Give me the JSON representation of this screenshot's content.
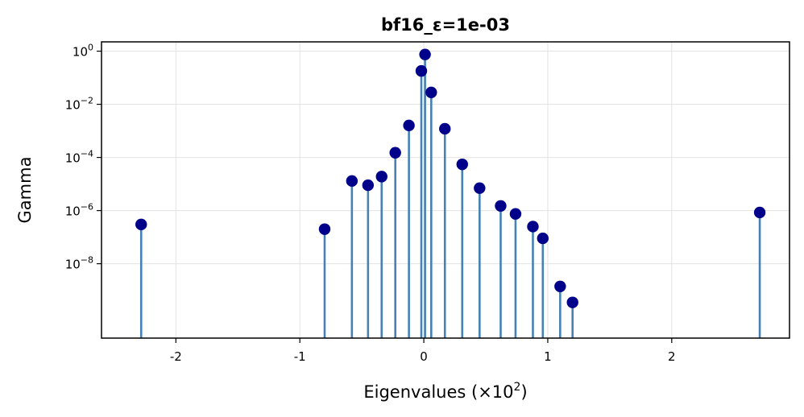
{
  "chart_data": {
    "type": "stem",
    "title": "bf16_ε=1e-03",
    "xlabel": {
      "text": "Eigenvalues (×10",
      "sup": "2",
      "suffix": ")"
    },
    "ylabel": "Gamma",
    "x_scale": "linear",
    "y_scale": "log",
    "xlim": [
      -2.6,
      2.95
    ],
    "ylim_exp": [
      -10.8,
      0.35
    ],
    "grid": true,
    "x_ticks": [
      {
        "value": -2,
        "label": "-2"
      },
      {
        "value": -1,
        "label": "-1"
      },
      {
        "value": 0,
        "label": "0"
      },
      {
        "value": 1,
        "label": "1"
      },
      {
        "value": 2,
        "label": "2"
      }
    ],
    "y_ticks": [
      {
        "exp": 0,
        "base": "10",
        "sup": "0"
      },
      {
        "exp": -2,
        "base": "10",
        "sup": "−2"
      },
      {
        "exp": -4,
        "base": "10",
        "sup": "−4"
      },
      {
        "exp": -6,
        "base": "10",
        "sup": "−6"
      },
      {
        "exp": -8,
        "base": "10",
        "sup": "−8"
      }
    ],
    "stem_color": "#4682b4",
    "marker_color": "#00008b",
    "points": [
      {
        "x": -2.28,
        "y": 3e-07
      },
      {
        "x": -0.8,
        "y": 2e-07
      },
      {
        "x": -0.58,
        "y": 1.3e-05
      },
      {
        "x": -0.45,
        "y": 9e-06
      },
      {
        "x": -0.34,
        "y": 1.9e-05
      },
      {
        "x": -0.23,
        "y": 0.00015
      },
      {
        "x": -0.12,
        "y": 0.0016
      },
      {
        "x": -0.02,
        "y": 0.18
      },
      {
        "x": 0.01,
        "y": 0.75
      },
      {
        "x": 0.06,
        "y": 0.028
      },
      {
        "x": 0.17,
        "y": 0.0012
      },
      {
        "x": 0.31,
        "y": 5.5e-05
      },
      {
        "x": 0.45,
        "y": 7e-06
      },
      {
        "x": 0.62,
        "y": 1.5e-06
      },
      {
        "x": 0.74,
        "y": 7.5e-07
      },
      {
        "x": 0.88,
        "y": 2.5e-07
      },
      {
        "x": 0.96,
        "y": 9e-08
      },
      {
        "x": 1.1,
        "y": 1.4e-09
      },
      {
        "x": 1.2,
        "y": 3.5e-10
      },
      {
        "x": 2.71,
        "y": 8.5e-07
      }
    ]
  }
}
